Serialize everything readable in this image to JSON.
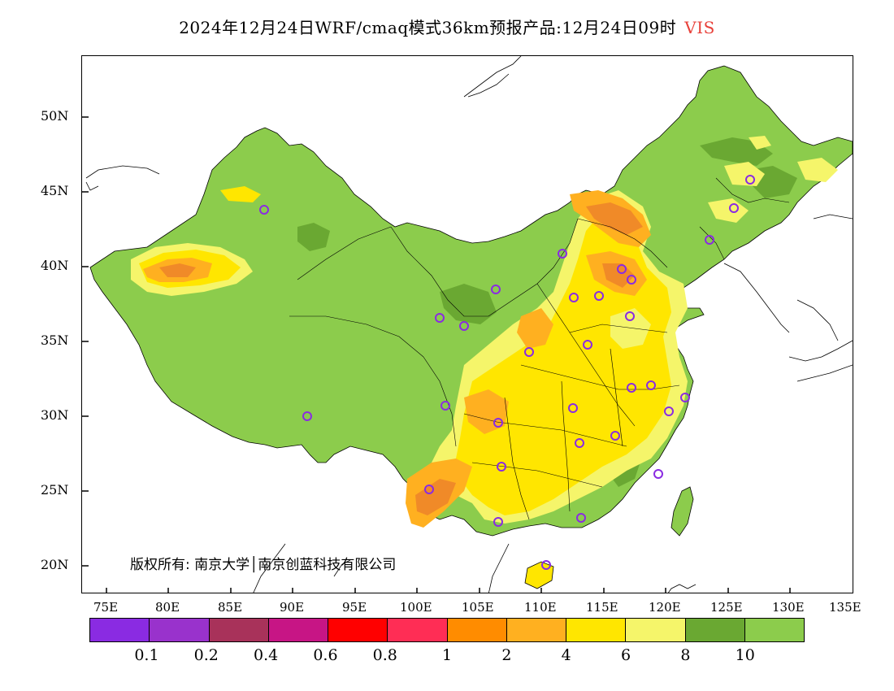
{
  "title": {
    "main": "2024年12月24日WRF/cmaq模式36km预报产品:12月24日09时",
    "variable": "VIS"
  },
  "copyright": "版权所有: 南京大学│南京创蓝科技有限公司",
  "axes": {
    "y_ticks": [
      "50N",
      "45N",
      "40N",
      "35N",
      "30N",
      "25N",
      "20N"
    ],
    "x_ticks": [
      "75E",
      "80E",
      "85E",
      "90E",
      "95E",
      "100E",
      "105E",
      "110E",
      "115E",
      "120E",
      "125E",
      "130E",
      "135E"
    ]
  },
  "legend": {
    "colors": [
      "#8a2be2",
      "#9932cc",
      "#a8325a",
      "#c71585",
      "#ff0000",
      "#ff2d55",
      "#ff8c00",
      "#ffb020",
      "#ffe600",
      "#f5f56a",
      "#6aa832",
      "#8ccc4c"
    ],
    "labels": [
      "0.1",
      "0.2",
      "0.4",
      "0.6",
      "0.8",
      "1",
      "2",
      "4",
      "6",
      "8",
      "10"
    ]
  },
  "map_colors": {
    "land_good": "#8ccc4c",
    "land_dark": "#6aa832",
    "band_8": "#f5f56a",
    "band_6": "#ffe600",
    "band_4": "#ffb020",
    "band_2": "#f08a28",
    "station": "#8a2be2"
  }
}
